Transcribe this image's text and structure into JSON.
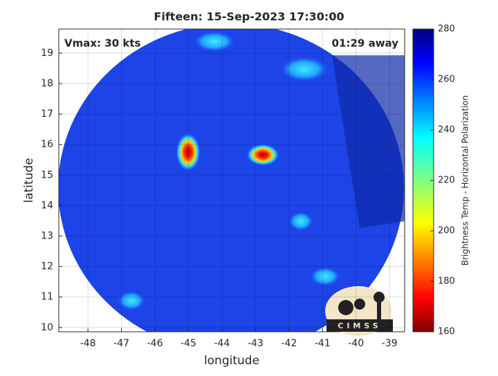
{
  "chart_data": {
    "type": "map",
    "title": "Fifteen: 15-Sep-2023 17:30:00",
    "xlabel": "longitude",
    "ylabel": "latitude",
    "xlim": [
      -48.87,
      -38.55
    ],
    "xticks": [
      -48,
      -47,
      -46,
      -45,
      -44,
      -43,
      -42,
      -41,
      -40,
      -39
    ],
    "ylim": [
      9.86,
      19.79
    ],
    "yticks": [
      10,
      11,
      12,
      13,
      14,
      15,
      16,
      17,
      18,
      19
    ],
    "grid": true,
    "annotations": [
      "Vmax: 30 kts",
      "01:29 away"
    ],
    "colorbar": {
      "label": "Brightness Temp - Horizontal Polarization",
      "lim": [
        160,
        280
      ],
      "ticks": [
        160,
        180,
        200,
        220,
        240,
        260,
        280
      ],
      "colormap": "jet"
    },
    "logo": "CIMSS"
  }
}
